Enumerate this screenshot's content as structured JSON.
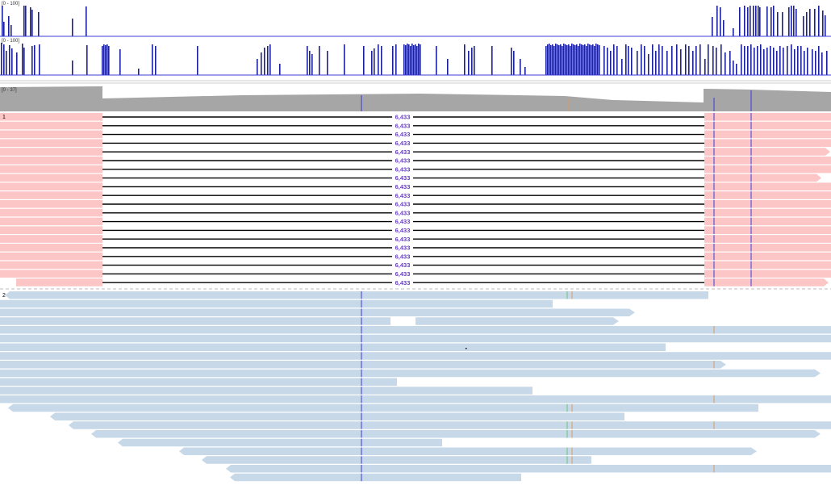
{
  "tracks": {
    "signal_1": {
      "range_label": "[0 - 100]",
      "color": "#1a1f9c"
    },
    "signal_2": {
      "range_label": "[0 - 100]",
      "color": "#1a1f9c"
    },
    "coverage": {
      "range_label": "[0 - 37]",
      "color": "#a6a6a6"
    }
  },
  "groups": [
    {
      "label": "1",
      "read_color": "#fcc6c6",
      "junction_count": "6,433",
      "junction_rows": 20
    },
    {
      "label": "2",
      "read_color": "#c7d9e8"
    }
  ],
  "colors": {
    "baseline": "#3b3bd6",
    "mismatch_blue": "#3a3ae0",
    "mismatch_orange": "#d69a66",
    "mismatch_green": "#6cc27a",
    "junction_line": "#000000"
  }
}
